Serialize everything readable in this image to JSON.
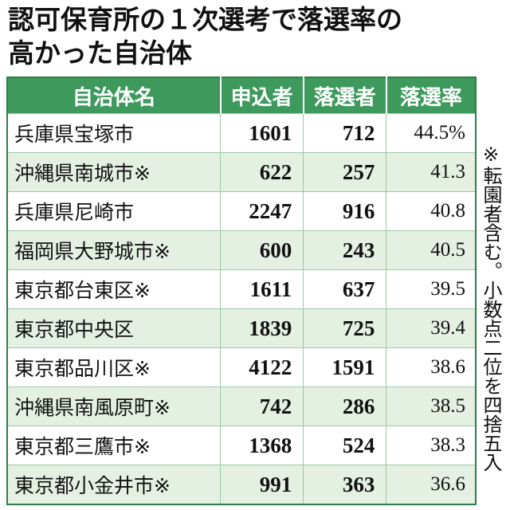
{
  "title_lines": [
    "認可保育所の１次選考で落選率の",
    "高かった自治体"
  ],
  "table": {
    "header": [
      "自治体名",
      "申込者",
      "落選者",
      "落選率"
    ],
    "rows": [
      [
        "兵庫県宝塚市",
        "1601",
        "712",
        "44.5%"
      ],
      [
        "沖縄県南城市※",
        "622",
        "257",
        "41.3"
      ],
      [
        "兵庫県尼崎市",
        "2247",
        "916",
        "40.8"
      ],
      [
        "福岡県大野城市※",
        "600",
        "243",
        "40.5"
      ],
      [
        "東京都台東区※",
        "1611",
        "637",
        "39.5"
      ],
      [
        "東京都中央区",
        "1839",
        "725",
        "39.4"
      ],
      [
        "東京都品川区※",
        "4122",
        "1591",
        "38.6"
      ],
      [
        "沖縄県南風原町※",
        "742",
        "286",
        "38.5"
      ],
      [
        "東京都三鷹市※",
        "1368",
        "524",
        "38.3"
      ],
      [
        "東京都小金井市※",
        "991",
        "363",
        "36.6"
      ]
    ]
  },
  "note": "※転園者含む。小数点二位を四捨五入"
}
